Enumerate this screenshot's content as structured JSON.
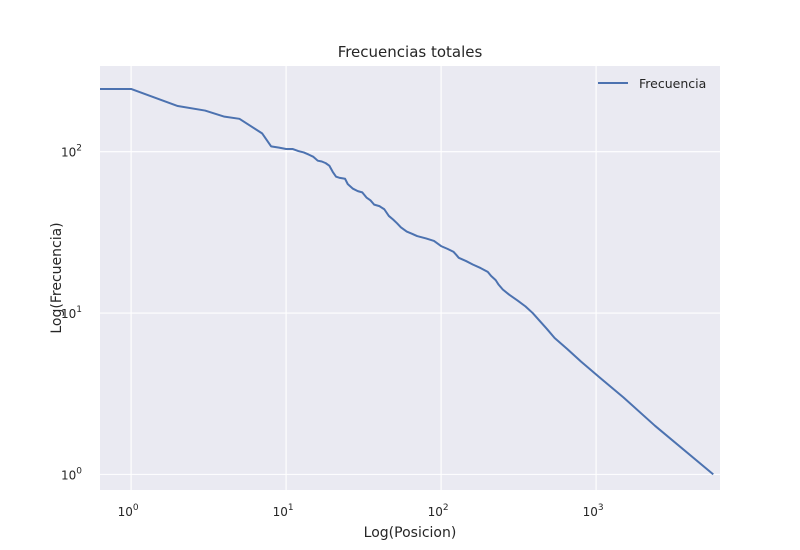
{
  "chart_data": {
    "type": "line",
    "title": "Frecuencias totales",
    "xlabel": "Log(Posicion)",
    "ylabel": "Log(Frecuencia)",
    "xscale": "log",
    "yscale": "log",
    "grid": true,
    "legend": {
      "position": "top-right"
    },
    "colors": {
      "background": "#eaeaf2",
      "grid": "#ffffff",
      "line": "#4c72b0"
    },
    "xticks": [
      {
        "value": 1,
        "base": "10",
        "exp": "0"
      },
      {
        "value": 10,
        "base": "10",
        "exp": "1"
      },
      {
        "value": 100,
        "base": "10",
        "exp": "2"
      },
      {
        "value": 1000,
        "base": "10",
        "exp": "3"
      }
    ],
    "yticks": [
      {
        "value": 1,
        "base": "10",
        "exp": "0"
      },
      {
        "value": 10,
        "base": "10",
        "exp": "1"
      },
      {
        "value": 100,
        "base": "10",
        "exp": "2"
      }
    ],
    "xlim": [
      0.63,
      6300
    ],
    "ylim": [
      0.8,
      340
    ],
    "series": [
      {
        "name": "Frecuencia",
        "points": [
          [
            0.63,
            245
          ],
          [
            1,
            245
          ],
          [
            2,
            192
          ],
          [
            3,
            180
          ],
          [
            4,
            165
          ],
          [
            5,
            160
          ],
          [
            7,
            130
          ],
          [
            8,
            108
          ],
          [
            9,
            106
          ],
          [
            10,
            104
          ],
          [
            11,
            104
          ],
          [
            12,
            101
          ],
          [
            13,
            99
          ],
          [
            14,
            96
          ],
          [
            15,
            93
          ],
          [
            16,
            88
          ],
          [
            17,
            87
          ],
          [
            18,
            85
          ],
          [
            19,
            82
          ],
          [
            20,
            75
          ],
          [
            21,
            70
          ],
          [
            22,
            69
          ],
          [
            24,
            68
          ],
          [
            25,
            63
          ],
          [
            27,
            59
          ],
          [
            29,
            57
          ],
          [
            31,
            56
          ],
          [
            33,
            52
          ],
          [
            35,
            50
          ],
          [
            37,
            47
          ],
          [
            40,
            46
          ],
          [
            43,
            44
          ],
          [
            46,
            40
          ],
          [
            49,
            38
          ],
          [
            52,
            36
          ],
          [
            55,
            34
          ],
          [
            60,
            32
          ],
          [
            65,
            31
          ],
          [
            70,
            30
          ],
          [
            80,
            29
          ],
          [
            90,
            28
          ],
          [
            100,
            26
          ],
          [
            110,
            25
          ],
          [
            120,
            24
          ],
          [
            125,
            23
          ],
          [
            130,
            22
          ],
          [
            145,
            21
          ],
          [
            160,
            20
          ],
          [
            180,
            19
          ],
          [
            200,
            18
          ],
          [
            210,
            17
          ],
          [
            225,
            16
          ],
          [
            235,
            15
          ],
          [
            250,
            14
          ],
          [
            275,
            13
          ],
          [
            310,
            12
          ],
          [
            350,
            11
          ],
          [
            390,
            10
          ],
          [
            430,
            9
          ],
          [
            480,
            8
          ],
          [
            540,
            7
          ],
          [
            650,
            6
          ],
          [
            800,
            5
          ],
          [
            1050,
            4
          ],
          [
            1500,
            3
          ],
          [
            2400,
            2
          ],
          [
            5700,
            1
          ]
        ]
      }
    ]
  }
}
